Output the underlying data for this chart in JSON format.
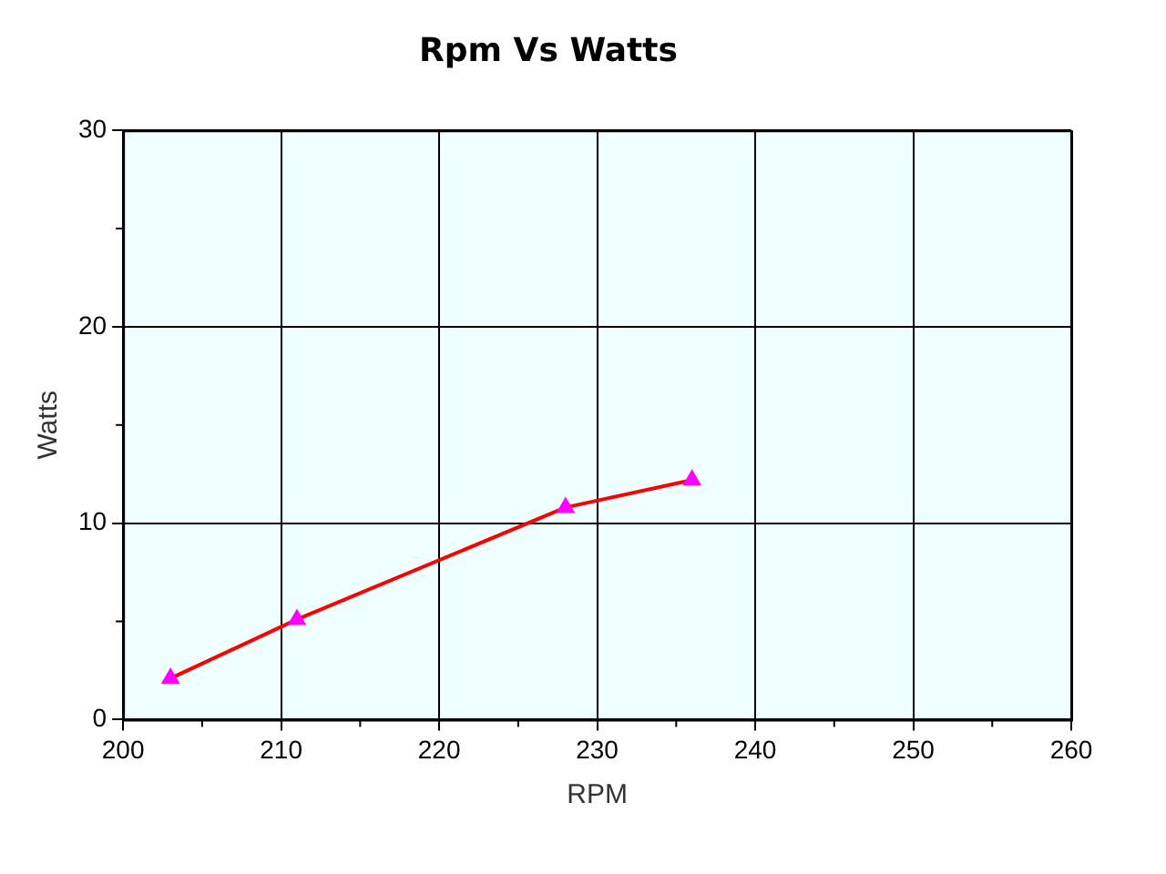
{
  "chart_data": {
    "type": "line",
    "title": "Rpm Vs Watts",
    "xlabel": "RPM",
    "ylabel": "Watts",
    "x": [
      203,
      211,
      228,
      236
    ],
    "series": [
      {
        "color": "#ff0000",
        "colors": [
          "#ff00ff",
          "#ff00ff",
          "#ff00ff",
          "#ff00ff"
        ],
        "values": [
          2.1,
          5.1,
          10.8,
          12.2
        ]
      }
    ],
    "xlim": [
      200,
      260
    ],
    "xticks": [
      200,
      210,
      220,
      230,
      240,
      250,
      260
    ],
    "ylim": [
      0,
      30
    ],
    "yticks": [
      0,
      10,
      20,
      30
    ],
    "grid": true,
    "legend": false,
    "marker": "triangle",
    "line_style": "solid"
  }
}
